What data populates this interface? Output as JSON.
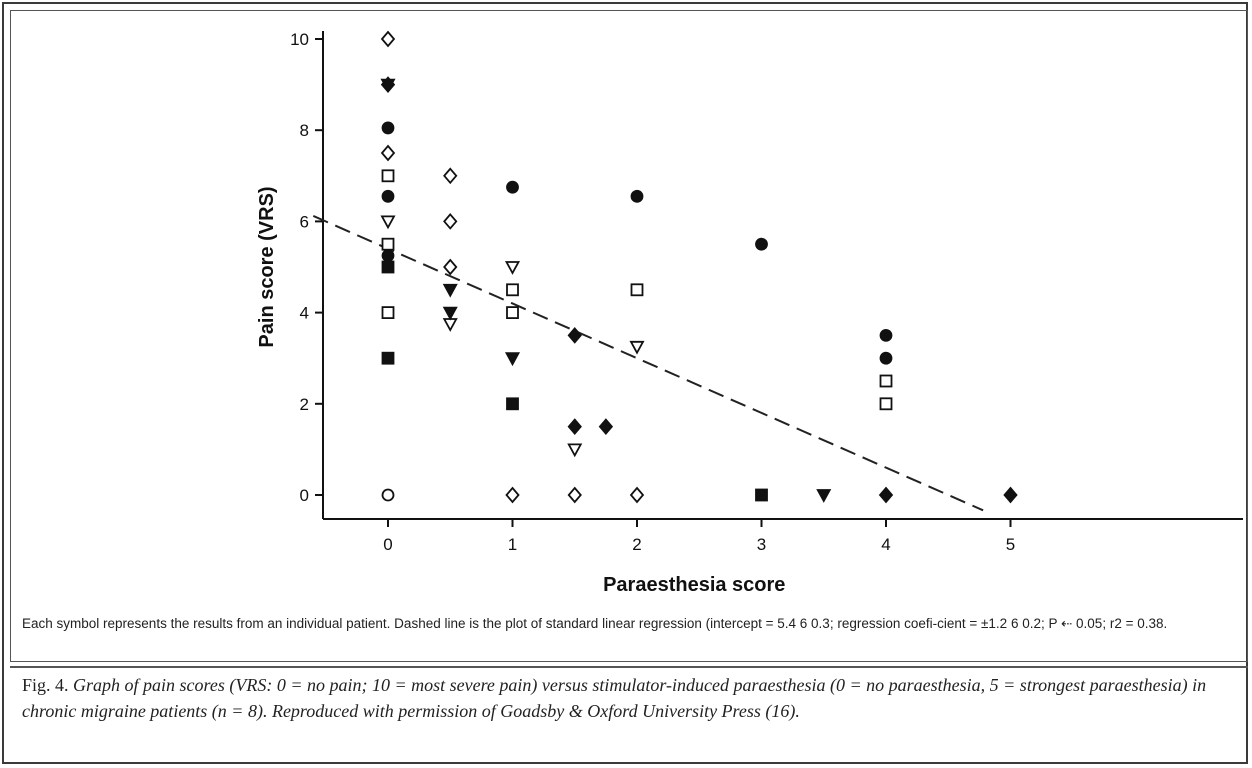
{
  "chart_data": {
    "type": "scatter",
    "xlabel": "Paraesthesia score",
    "ylabel": "Pain score (VRS)",
    "xlim": [
      -0.6,
      5.1
    ],
    "ylim": [
      -0.5,
      10.2
    ],
    "xticks": [
      0,
      1,
      2,
      3,
      4,
      5
    ],
    "yticks": [
      0,
      2,
      4,
      6,
      8,
      10
    ],
    "grid": false,
    "legend": "none",
    "regression_line": {
      "style": "dashed",
      "intercept": 5.4,
      "slope": -1.2,
      "x_range": [
        -0.6,
        4.78
      ]
    },
    "series": [
      {
        "marker": "filled-circle",
        "points": [
          [
            0,
            8.05
          ],
          [
            0,
            6.55
          ],
          [
            0,
            5.25
          ],
          [
            1,
            6.75
          ],
          [
            2,
            6.55
          ],
          [
            3,
            5.5
          ],
          [
            4,
            3.5
          ],
          [
            4,
            3.0
          ]
        ]
      },
      {
        "marker": "open-square",
        "points": [
          [
            0,
            7.0
          ],
          [
            0,
            5.5
          ],
          [
            0,
            4.0
          ],
          [
            1,
            4.5
          ],
          [
            1,
            4.0
          ],
          [
            2,
            4.5
          ],
          [
            4,
            2.5
          ],
          [
            4,
            2.0
          ]
        ]
      },
      {
        "marker": "filled-square",
        "points": [
          [
            0,
            5.0
          ],
          [
            0,
            3.0
          ],
          [
            1,
            2.0
          ],
          [
            3,
            0
          ]
        ]
      },
      {
        "marker": "open-diamond",
        "points": [
          [
            0,
            10.0
          ],
          [
            0,
            7.5
          ],
          [
            0.5,
            7.0
          ],
          [
            0.5,
            6.0
          ],
          [
            0.5,
            5.0
          ],
          [
            1,
            0
          ],
          [
            1.5,
            0
          ],
          [
            2,
            0
          ]
        ]
      },
      {
        "marker": "filled-diamond",
        "points": [
          [
            0,
            9.0
          ],
          [
            1.5,
            3.5
          ],
          [
            1.5,
            1.5
          ],
          [
            1.75,
            1.5
          ],
          [
            4,
            0
          ],
          [
            5,
            0
          ]
        ]
      },
      {
        "marker": "open-triangle-down",
        "points": [
          [
            0,
            6.0
          ],
          [
            0.5,
            3.75
          ],
          [
            1,
            5.0
          ],
          [
            1.5,
            1.0
          ],
          [
            2,
            3.25
          ]
        ]
      },
      {
        "marker": "filled-triangle-down",
        "points": [
          [
            0,
            9.0
          ],
          [
            0.5,
            4.5
          ],
          [
            0.5,
            4.0
          ],
          [
            1,
            3.0
          ],
          [
            3.5,
            0
          ]
        ]
      },
      {
        "marker": "open-circle",
        "points": [
          [
            0,
            0
          ]
        ]
      }
    ]
  },
  "note": "Each symbol represents the results from an individual patient. Dashed line is the plot of standard linear regression (intercept = 5.4 6 0.3; regression coefi-cient = ±1.2 6 0.2; P ⇠ 0.05; r2 = 0.38.",
  "caption": {
    "label": "Fig. 4.",
    "text": "Graph of pain scores (VRS: 0 = no pain; 10 = most severe pain) versus stimulator-induced paraesthesia (0 = no paraesthesia, 5 = strongest paraesthesia) in chronic migraine patients (n = 8). Reproduced with permission of Goadsby & Oxford University Press (16)."
  }
}
